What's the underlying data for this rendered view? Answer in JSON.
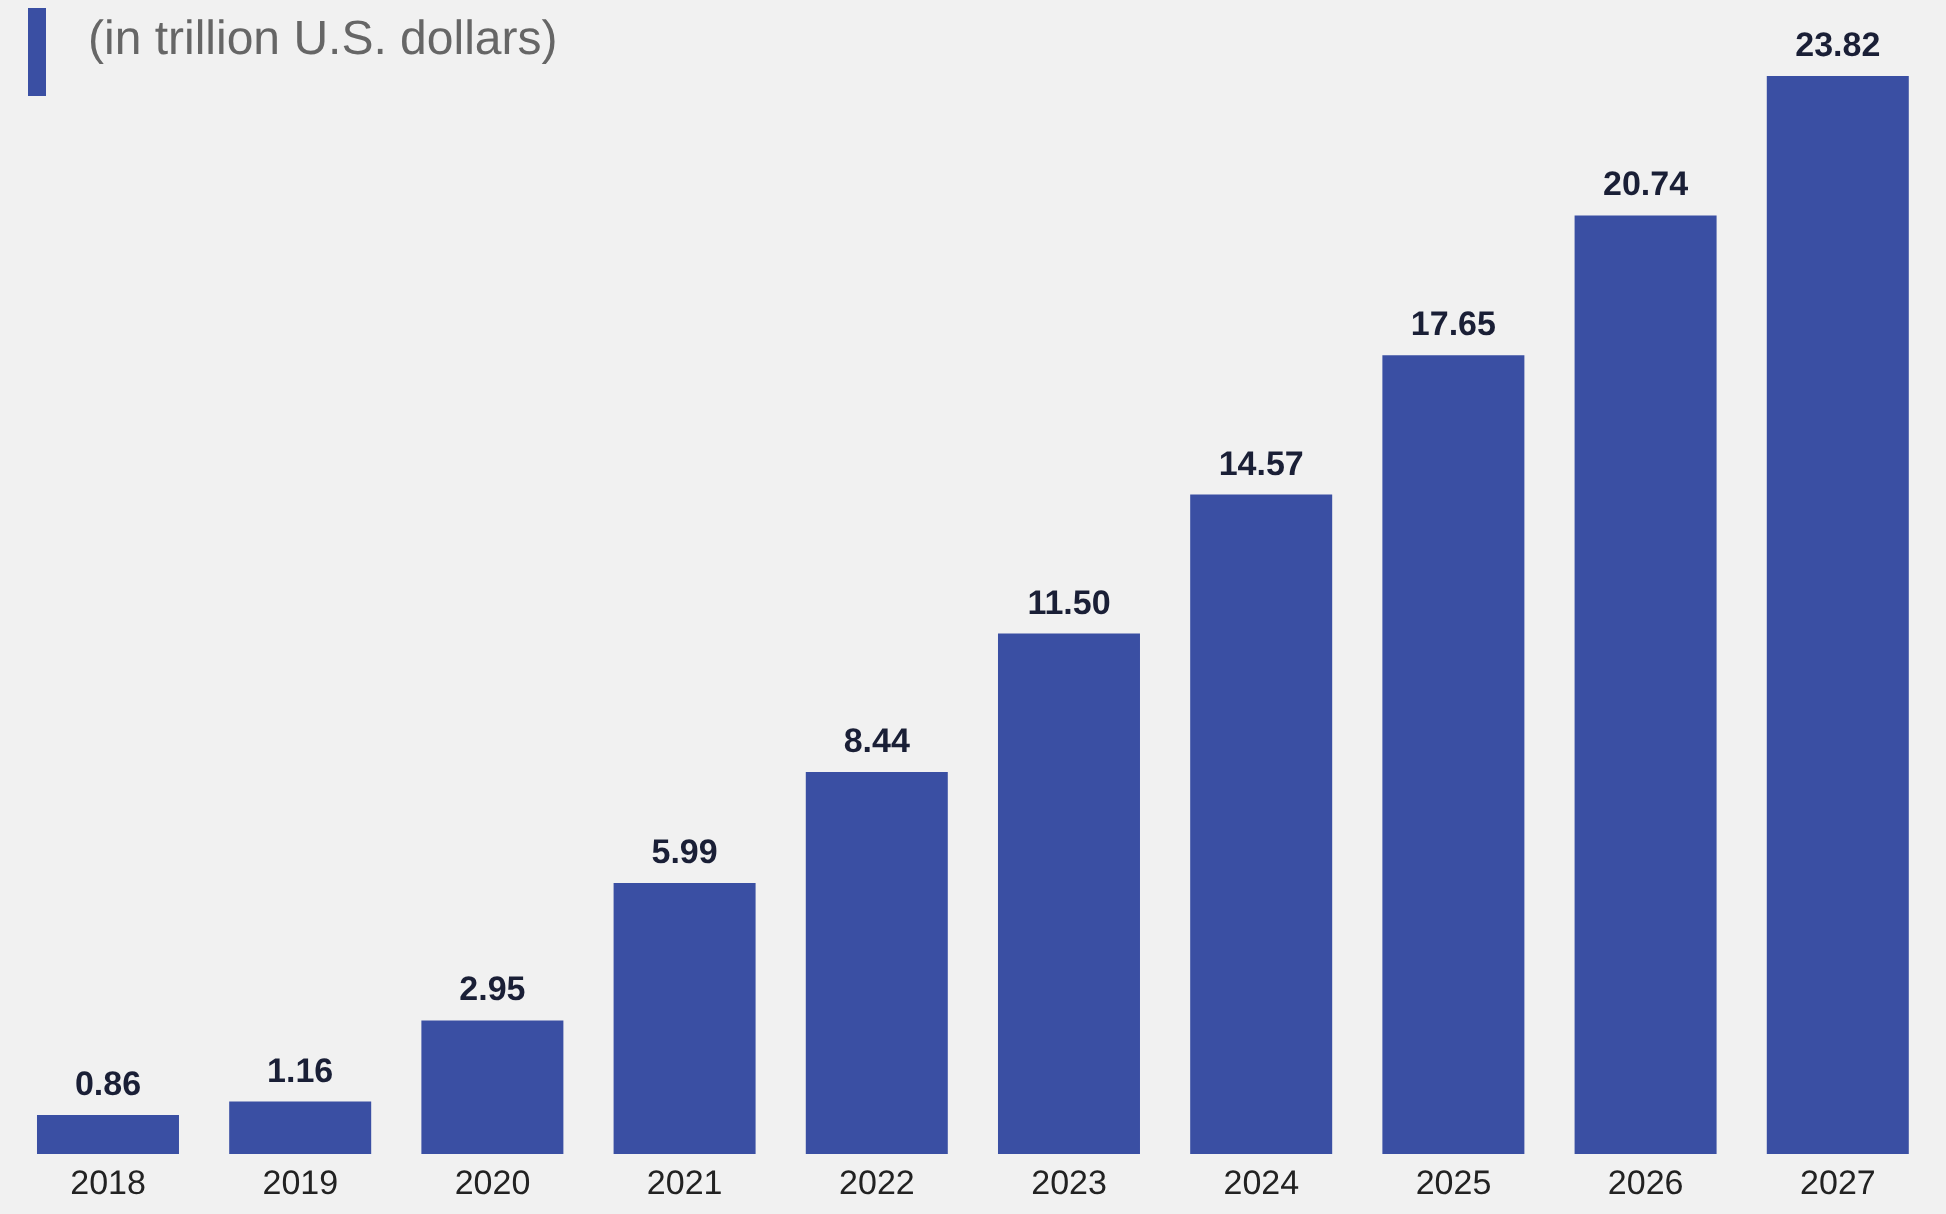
{
  "chart_data": {
    "type": "bar",
    "subtitle": "(in trillion U.S. dollars)",
    "categories": [
      "2018",
      "2019",
      "2020",
      "2021",
      "2022",
      "2023",
      "2024",
      "2025",
      "2026",
      "2027"
    ],
    "values": [
      0.86,
      1.16,
      2.95,
      5.99,
      8.44,
      11.5,
      14.57,
      17.65,
      20.74,
      23.82
    ],
    "value_labels": [
      "0.86",
      "1.16",
      "2.95",
      "5.99",
      "8.44",
      "11.50",
      "14.57",
      "17.65",
      "20.74",
      "23.82"
    ],
    "color": "#3a4fa3",
    "grid": false,
    "legend": false
  }
}
